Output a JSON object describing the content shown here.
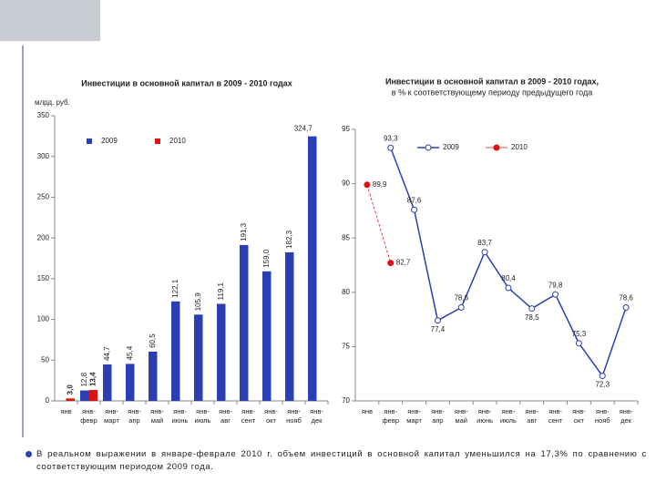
{
  "chart_data": [
    {
      "type": "bar",
      "title": "Инвестиции в основной капитал в 2009 - 2010 годах",
      "y_label": "млрд. руб.",
      "categories": [
        "янв",
        "янв-февр",
        "янв-март",
        "янв-апр",
        "янв-май",
        "янв-июнь",
        "янв-июль",
        "янв-авг",
        "янв-сент",
        "янв-окт",
        "янв-нояб",
        "янв-дек"
      ],
      "series": [
        {
          "name": "2009",
          "color": "#2b3fb5",
          "values": [
            null,
            12.8,
            44.7,
            45.4,
            60.5,
            122.1,
            105.9,
            119.1,
            191.3,
            159.0,
            182.3,
            324.7
          ],
          "value_labels": [
            null,
            "12,8",
            "44,7",
            "45,4",
            "60,5",
            "122,1",
            "105,9",
            "119,1",
            "191,3",
            "159,0",
            "182,3",
            "324,7"
          ]
        },
        {
          "name": "2010",
          "color": "#e01010",
          "values": [
            3.0,
            13.4,
            null,
            null,
            null,
            null,
            null,
            null,
            null,
            null,
            null,
            null
          ],
          "value_labels": [
            "3,0",
            "13,4",
            null,
            null,
            null,
            null,
            null,
            null,
            null,
            null,
            null,
            null
          ]
        }
      ],
      "ylim": [
        0,
        350
      ],
      "yticks": [
        0,
        50,
        100,
        150,
        200,
        250,
        300,
        350
      ]
    },
    {
      "type": "line",
      "title": "Инвестиции в основной капитал в 2009 - 2010 годах,",
      "subtitle": "в % к соответствующему периоду предыдущего года",
      "categories": [
        "янв",
        "янв-февр",
        "янв-март",
        "янв-апр",
        "янв-май",
        "янв-июнь",
        "янв-июль",
        "янв-авг",
        "янв-сент",
        "янв-окт",
        "янв-нояб",
        "янв-дек"
      ],
      "series": [
        {
          "name": "2009",
          "color": "#2b3fb5",
          "values": [
            null,
            93.3,
            87.6,
            77.4,
            78.6,
            83.7,
            80.4,
            78.5,
            79.8,
            75.3,
            72.3,
            78.6
          ],
          "value_labels": [
            null,
            "93,3",
            "87,6",
            "77,4",
            "78,6",
            "83,7",
            "80,4",
            "78,5",
            "79,8",
            "75,3",
            "72,3",
            "78,6"
          ]
        },
        {
          "name": "2010",
          "color": "#e01010",
          "values": [
            89.9,
            82.7,
            null,
            null,
            null,
            null,
            null,
            null,
            null,
            null,
            null,
            null
          ],
          "value_labels": [
            "89,9",
            "82,7",
            null,
            null,
            null,
            null,
            null,
            null,
            null,
            null,
            null,
            null
          ]
        }
      ],
      "ylim": [
        70,
        95
      ],
      "yticks": [
        70,
        75,
        80,
        85,
        90,
        95
      ]
    }
  ],
  "note": "В реальном выражении в январе-феврале 2010 г. объем инвестиций в основной капитал уменьшился на 17,3% по сравнению с соответствующим периодом 2009 года."
}
